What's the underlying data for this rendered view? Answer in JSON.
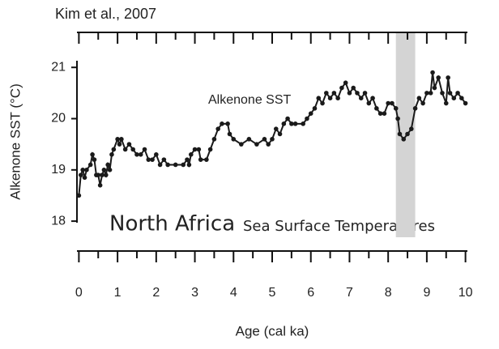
{
  "chart_data": {
    "type": "line",
    "source": "Kim et al., 2007",
    "series_label": "Alkenone SST",
    "caption_title": "North Africa",
    "caption_subtitle": "Sea Surface Temperatures",
    "ylabel": "Alkenone SST (°C)",
    "xlabel": "Age (cal ka)",
    "x": [
      0,
      0.05,
      0.1,
      0.15,
      0.2,
      0.3,
      0.35,
      0.4,
      0.45,
      0.5,
      0.55,
      0.6,
      0.65,
      0.7,
      0.75,
      0.8,
      0.85,
      0.9,
      1.0,
      1.05,
      1.1,
      1.2,
      1.3,
      1.4,
      1.5,
      1.6,
      1.7,
      1.8,
      1.9,
      2.0,
      2.1,
      2.2,
      2.3,
      2.5,
      2.7,
      2.8,
      2.85,
      2.9,
      3.0,
      3.1,
      3.15,
      3.3,
      3.4,
      3.5,
      3.6,
      3.7,
      3.85,
      3.9,
      4.0,
      4.2,
      4.4,
      4.6,
      4.8,
      4.9,
      5.0,
      5.1,
      5.2,
      5.3,
      5.4,
      5.5,
      5.6,
      5.8,
      5.9,
      6.0,
      6.1,
      6.2,
      6.3,
      6.4,
      6.5,
      6.6,
      6.7,
      6.8,
      6.9,
      7.0,
      7.1,
      7.2,
      7.3,
      7.4,
      7.5,
      7.6,
      7.7,
      7.8,
      7.9,
      8.0,
      8.1,
      8.2,
      8.25,
      8.3,
      8.4,
      8.5,
      8.6,
      8.7,
      8.8,
      8.9,
      9.0,
      9.1,
      9.15,
      9.2,
      9.3,
      9.4,
      9.5,
      9.55,
      9.6,
      9.7,
      9.8,
      9.9,
      10.0
    ],
    "series": [
      {
        "name": "Alkenone SST",
        "color": "#1a1a1a",
        "values": [
          18.5,
          18.9,
          19.0,
          18.85,
          19.0,
          19.1,
          19.3,
          19.2,
          18.9,
          18.9,
          18.7,
          18.9,
          19.0,
          18.9,
          19.1,
          19.0,
          19.3,
          19.4,
          19.6,
          19.5,
          19.6,
          19.4,
          19.5,
          19.4,
          19.3,
          19.3,
          19.4,
          19.2,
          19.2,
          19.3,
          19.1,
          19.2,
          19.1,
          19.1,
          19.1,
          19.2,
          19.1,
          19.3,
          19.4,
          19.4,
          19.2,
          19.2,
          19.4,
          19.6,
          19.8,
          19.9,
          19.9,
          19.7,
          19.6,
          19.5,
          19.6,
          19.5,
          19.6,
          19.5,
          19.6,
          19.8,
          19.7,
          19.9,
          20.0,
          19.9,
          19.9,
          19.9,
          20.0,
          20.1,
          20.2,
          20.4,
          20.3,
          20.5,
          20.4,
          20.5,
          20.4,
          20.6,
          20.7,
          20.5,
          20.6,
          20.5,
          20.4,
          20.5,
          20.3,
          20.4,
          20.2,
          20.1,
          20.1,
          20.3,
          20.3,
          20.2,
          20.0,
          19.7,
          19.6,
          19.7,
          19.8,
          20.2,
          20.4,
          20.3,
          20.5,
          20.5,
          20.9,
          20.6,
          20.8,
          20.5,
          20.3,
          20.8,
          20.5,
          20.4,
          20.5,
          20.4,
          20.3
        ]
      }
    ],
    "xlim": [
      -0.05,
      10.05
    ],
    "xticks": [
      0,
      1,
      2,
      3,
      4,
      5,
      6,
      7,
      8,
      9,
      10
    ],
    "xminorticks": [
      0.5,
      1.5,
      2.5,
      3.5,
      4.5,
      5.5,
      6.5,
      7.5,
      8.5,
      9.5
    ],
    "ylim": [
      17.97,
      21.13
    ],
    "yticks": [
      18,
      19,
      20,
      21
    ],
    "highlight": {
      "xlim": [
        8.2,
        8.7
      ],
      "color": "#d4d4d4"
    }
  }
}
